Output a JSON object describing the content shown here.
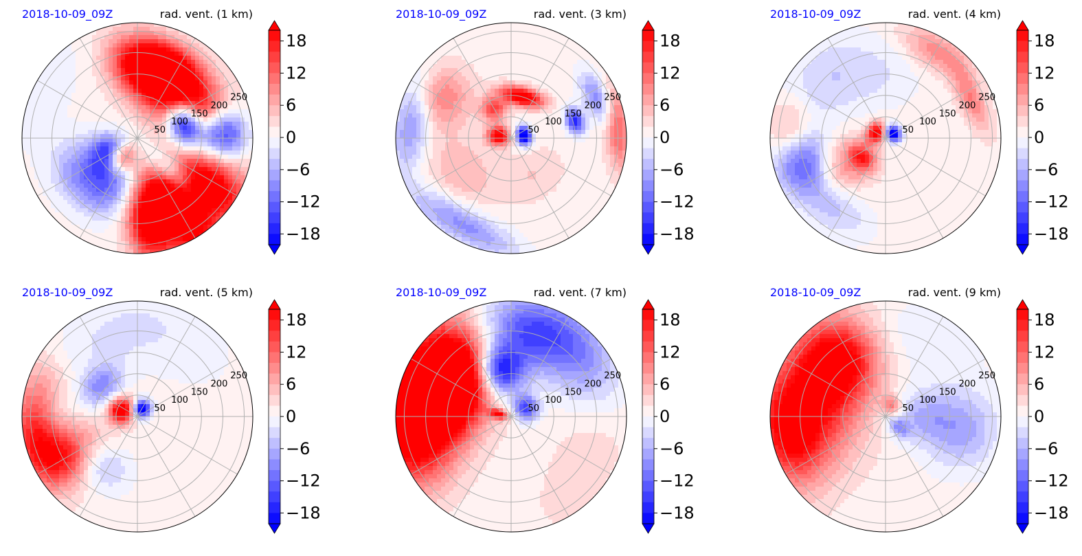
{
  "colors": {
    "negative": "#0000ff",
    "positive": "#ff0000",
    "neutral": "#ffffff",
    "date_label": "#0000ff",
    "grid": "#b0b0b0"
  },
  "colorbar": {
    "ticks": [
      "18",
      "12",
      "6",
      "0",
      "−6",
      "−12",
      "−18"
    ],
    "tick_values": [
      18,
      12,
      6,
      0,
      -6,
      -12,
      -18
    ],
    "range": [
      -20,
      20
    ],
    "levels": 20,
    "extend": "both",
    "colormap": "bwr"
  },
  "chart_data": [
    {
      "type": "heatmap",
      "projection": "polar",
      "date": "2018-10-09_09Z",
      "title": "rad. vent. (1 km)",
      "ring_labels": [
        "50",
        "100",
        "150",
        "200",
        "250"
      ],
      "ring_values": [
        50,
        100,
        150,
        200,
        250
      ],
      "r_max": 270,
      "blobs": [
        {
          "r": 140,
          "theta": 50,
          "sr": 50,
          "st": 40,
          "v": 26
        },
        {
          "r": 170,
          "theta": 75,
          "sr": 40,
          "st": 20,
          "v": 22
        },
        {
          "r": 115,
          "theta": 18,
          "sr": 28,
          "st": 20,
          "v": -28
        },
        {
          "r": 200,
          "theta": 3,
          "sr": 40,
          "st": 12,
          "v": -22
        },
        {
          "r": 200,
          "theta": -35,
          "sr": 70,
          "st": 14,
          "v": 24
        },
        {
          "r": 200,
          "theta": -60,
          "sr": 80,
          "st": 12,
          "v": 26
        },
        {
          "r": 200,
          "theta": -82,
          "sr": 60,
          "st": 10,
          "v": 24
        },
        {
          "r": 130,
          "theta": -45,
          "sr": 60,
          "st": 10,
          "v": -16
        },
        {
          "r": 70,
          "theta": -150,
          "sr": 30,
          "st": 25,
          "v": -16
        },
        {
          "r": 60,
          "theta": -130,
          "sr": 25,
          "st": 20,
          "v": 20
        },
        {
          "r": 130,
          "theta": -120,
          "sr": 50,
          "st": 20,
          "v": -10
        },
        {
          "r": 150,
          "theta": -150,
          "sr": 50,
          "st": 20,
          "v": -9
        },
        {
          "r": 240,
          "theta": 150,
          "sr": 50,
          "st": 30,
          "v": -2
        }
      ]
    },
    {
      "type": "heatmap",
      "projection": "polar",
      "date": "2018-10-09_09Z",
      "title": "rad. vent. (3 km)",
      "ring_labels": [
        "50",
        "100",
        "150",
        "200",
        "250"
      ],
      "ring_values": [
        50,
        100,
        150,
        200,
        250
      ],
      "r_max": 270,
      "blobs": [
        {
          "r": 100,
          "theta": 75,
          "sr": 15,
          "st": 20,
          "v": 24
        },
        {
          "r": 30,
          "theta": 170,
          "sr": 18,
          "st": 30,
          "v": 22
        },
        {
          "r": 30,
          "theta": 10,
          "sr": 12,
          "st": 30,
          "v": -26
        },
        {
          "r": 80,
          "theta": 120,
          "sr": 20,
          "st": 15,
          "v": 14
        },
        {
          "r": 190,
          "theta": 150,
          "sr": 50,
          "st": 15,
          "v": 9
        },
        {
          "r": 230,
          "theta": -120,
          "sr": 30,
          "st": 25,
          "v": -10
        },
        {
          "r": 235,
          "theta": 170,
          "sr": 30,
          "st": 20,
          "v": -10
        },
        {
          "r": 140,
          "theta": -145,
          "sr": 50,
          "st": 25,
          "v": 5
        },
        {
          "r": 250,
          "theta": 5,
          "sr": 20,
          "st": 15,
          "v": 12
        },
        {
          "r": 155,
          "theta": 15,
          "sr": 15,
          "st": 8,
          "v": -18
        },
        {
          "r": 220,
          "theta": 25,
          "sr": 20,
          "st": 12,
          "v": -10
        },
        {
          "r": 100,
          "theta": -60,
          "sr": 40,
          "st": 30,
          "v": 3
        }
      ]
    },
    {
      "type": "heatmap",
      "projection": "polar",
      "date": "2018-10-09_09Z",
      "title": "rad. vent. (4 km)",
      "ring_labels": [
        "50",
        "100",
        "150",
        "200",
        "250"
      ],
      "ring_values": [
        50,
        100,
        150,
        200,
        250
      ],
      "r_max": 270,
      "blobs": [
        {
          "r": 25,
          "theta": 150,
          "sr": 15,
          "st": 40,
          "v": 22
        },
        {
          "r": 20,
          "theta": 30,
          "sr": 12,
          "st": 40,
          "v": -26
        },
        {
          "r": 200,
          "theta": -165,
          "sr": 50,
          "st": 15,
          "v": -18
        },
        {
          "r": 220,
          "theta": -180,
          "sr": 40,
          "st": 15,
          "v": 10
        },
        {
          "r": 130,
          "theta": -150,
          "sr": 50,
          "st": 20,
          "v": 10
        },
        {
          "r": 235,
          "theta": 60,
          "sr": 30,
          "st": 15,
          "v": 8
        },
        {
          "r": 220,
          "theta": 25,
          "sr": 20,
          "st": 15,
          "v": 9
        },
        {
          "r": 200,
          "theta": -130,
          "sr": 40,
          "st": 20,
          "v": -6
        },
        {
          "r": 150,
          "theta": 100,
          "sr": 60,
          "st": 30,
          "v": -3
        },
        {
          "r": 200,
          "theta": 140,
          "sr": 60,
          "st": 25,
          "v": -4
        },
        {
          "r": 70,
          "theta": -140,
          "sr": 20,
          "st": 20,
          "v": 14
        }
      ]
    },
    {
      "type": "heatmap",
      "projection": "polar",
      "date": "2018-10-09_09Z",
      "title": "rad. vent. (5 km)",
      "ring_labels": [
        "50",
        "100",
        "150",
        "200",
        "250"
      ],
      "ring_values": [
        50,
        100,
        150,
        200,
        250
      ],
      "r_max": 270,
      "blobs": [
        {
          "r": 40,
          "theta": 160,
          "sr": 20,
          "st": 30,
          "v": 24
        },
        {
          "r": 20,
          "theta": 60,
          "sr": 15,
          "st": 40,
          "v": -24
        },
        {
          "r": 220,
          "theta": -165,
          "sr": 50,
          "st": 18,
          "v": 20
        },
        {
          "r": 170,
          "theta": -150,
          "sr": 60,
          "st": 15,
          "v": 10
        },
        {
          "r": 230,
          "theta": 175,
          "sr": 40,
          "st": 20,
          "v": 8
        },
        {
          "r": 200,
          "theta": -175,
          "sr": 40,
          "st": 15,
          "v": -12
        },
        {
          "r": 110,
          "theta": 140,
          "sr": 30,
          "st": 20,
          "v": -10
        },
        {
          "r": 200,
          "theta": 110,
          "sr": 60,
          "st": 30,
          "v": -3
        },
        {
          "r": 140,
          "theta": -130,
          "sr": 40,
          "st": 20,
          "v": -8
        },
        {
          "r": 200,
          "theta": 60,
          "sr": 70,
          "st": 30,
          "v": -2
        }
      ]
    },
    {
      "type": "heatmap",
      "projection": "polar",
      "date": "2018-10-09_09Z",
      "title": "rad. vent. (7 km)",
      "ring_labels": [
        "50",
        "100",
        "150",
        "200",
        "250"
      ],
      "ring_values": [
        50,
        100,
        150,
        200,
        250
      ],
      "r_max": 270,
      "blobs": [
        {
          "r": 200,
          "theta": 165,
          "sr": 70,
          "st": 35,
          "v": 26
        },
        {
          "r": 150,
          "theta": 150,
          "sr": 60,
          "st": 30,
          "v": 22
        },
        {
          "r": 240,
          "theta": -170,
          "sr": 60,
          "st": 20,
          "v": 9
        },
        {
          "r": 110,
          "theta": 105,
          "sr": 40,
          "st": 20,
          "v": -22
        },
        {
          "r": 200,
          "theta": 80,
          "sr": 60,
          "st": 25,
          "v": -14
        },
        {
          "r": 210,
          "theta": 40,
          "sr": 60,
          "st": 25,
          "v": -8
        },
        {
          "r": 40,
          "theta": 30,
          "sr": 20,
          "st": 30,
          "v": -16
        },
        {
          "r": 30,
          "theta": 170,
          "sr": 15,
          "st": 15,
          "v": 18
        },
        {
          "r": 200,
          "theta": -30,
          "sr": 60,
          "st": 40,
          "v": 2
        }
      ]
    },
    {
      "type": "heatmap",
      "projection": "polar",
      "date": "2018-10-09_09Z",
      "title": "rad. vent. (9 km)",
      "ring_labels": [
        "50",
        "100",
        "150",
        "200",
        "250"
      ],
      "ring_values": [
        50,
        100,
        150,
        200,
        250
      ],
      "r_max": 270,
      "blobs": [
        {
          "r": 170,
          "theta": 165,
          "sr": 80,
          "st": 40,
          "v": 18
        },
        {
          "r": 170,
          "theta": 130,
          "sr": 60,
          "st": 20,
          "v": 14
        },
        {
          "r": 230,
          "theta": -170,
          "sr": 50,
          "st": 20,
          "v": 12
        },
        {
          "r": 180,
          "theta": -10,
          "sr": 60,
          "st": 20,
          "v": -8
        },
        {
          "r": 80,
          "theta": 0,
          "sr": 50,
          "st": 30,
          "v": -6
        },
        {
          "r": 200,
          "theta": 60,
          "sr": 60,
          "st": 25,
          "v": -3
        },
        {
          "r": 30,
          "theta": 60,
          "sr": 15,
          "st": 30,
          "v": 10
        },
        {
          "r": 40,
          "theta": -40,
          "sr": 20,
          "st": 20,
          "v": -8
        }
      ]
    }
  ]
}
